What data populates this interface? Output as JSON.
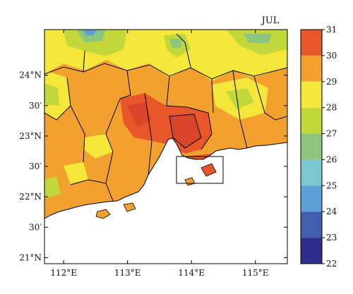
{
  "map": {
    "month_label": "JUL",
    "lon_ticks": [
      "112°E",
      "113°E",
      "114°E",
      "115°E"
    ],
    "lat_ticks": [
      "24°N",
      "30′",
      "23°N",
      "30′",
      "22°N",
      "30′",
      "21°N"
    ],
    "lon_values": [
      112,
      113,
      114,
      115
    ],
    "lat_values": [
      24,
      23.5,
      23,
      22.5,
      22,
      21.5,
      21
    ],
    "lon_range": [
      111.7,
      115.5
    ],
    "lat_range": [
      20.9,
      24.75
    ]
  },
  "colorbar": {
    "tick_labels": [
      "31",
      "30",
      "29",
      "28",
      "27",
      "26",
      "25",
      "24",
      "23",
      "22"
    ],
    "tick_values": [
      31,
      30,
      29,
      28,
      27,
      26,
      25,
      24,
      23,
      22
    ],
    "colors": [
      "#e8572a",
      "#f2a12e",
      "#f4e73a",
      "#c2d83a",
      "#8cc67e",
      "#7bc9cf",
      "#5b9fd4",
      "#3f5eae",
      "#2e2f8c"
    ]
  }
}
